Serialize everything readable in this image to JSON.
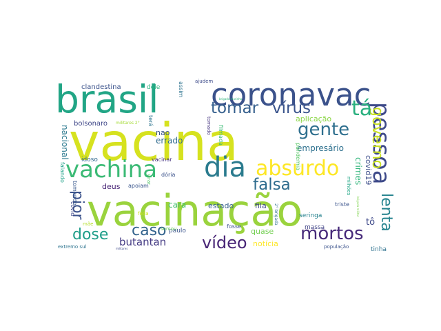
{
  "words": [
    {
      "text": "vacina",
      "color": "#d6e21f"
    },
    {
      "text": "vacinação",
      "color": "#9ad33d"
    },
    {
      "text": "coronavac",
      "color": "#3b528b"
    },
    {
      "text": "brasil",
      "color": "#21a585"
    },
    {
      "text": "vachina",
      "color": "#3bba75"
    },
    {
      "text": "dia",
      "color": "#2a7b8e"
    },
    {
      "text": "absurdo",
      "color": "#fde725"
    },
    {
      "text": "pessoa",
      "color": "#3e4a89"
    },
    {
      "text": "governo",
      "color": "#c8e020"
    },
    {
      "text": "tá",
      "color": "#2ab07f"
    },
    {
      "text": "gente",
      "color": "#2e6f8e"
    },
    {
      "text": "vírus",
      "color": "#3a548c"
    },
    {
      "text": "tomar",
      "color": "#355f8d"
    },
    {
      "text": "falsa",
      "color": "#2f6c8e"
    },
    {
      "text": "mortos",
      "color": "#472a7a"
    },
    {
      "text": "vídeo",
      "color": "#482576"
    },
    {
      "text": "caso",
      "color": "#33638d"
    },
    {
      "text": "dose",
      "color": "#1f9e89"
    },
    {
      "text": "lenta",
      "color": "#25838e"
    },
    {
      "text": "pior",
      "color": "#3b528b"
    },
    {
      "text": "butantan",
      "color": "#443a83"
    },
    {
      "text": "empresário",
      "color": "#2d708e"
    },
    {
      "text": "crimes",
      "color": "#31b57b"
    },
    {
      "text": "covid19",
      "color": "#3d4e8a"
    },
    {
      "text": "nacional",
      "color": "#2a788e"
    },
    {
      "text": "errado",
      "color": "#2f6b8e"
    },
    {
      "text": "nao",
      "color": "#3a538b"
    },
    {
      "text": "cara",
      "color": "#46c06f"
    },
    {
      "text": "estado",
      "color": "#35608d"
    },
    {
      "text": "fila",
      "color": "#3f4889"
    },
    {
      "text": "deus",
      "color": "#482475"
    },
    {
      "text": "apoiam",
      "color": "#39558c"
    },
    {
      "text": "paulo",
      "color": "#3a538b"
    },
    {
      "text": "somou",
      "color": "#65cb5e"
    },
    {
      "text": "fosse",
      "color": "#3c4f8a"
    },
    {
      "text": "quase",
      "color": "#75d054"
    },
    {
      "text": "notícia",
      "color": "#fde725"
    },
    {
      "text": "tô",
      "color": "#3e4989"
    },
    {
      "text": "tinha",
      "color": "#2d718e"
    },
    {
      "text": "massa",
      "color": "#414487"
    },
    {
      "text": "seringa",
      "color": "#26828e"
    },
    {
      "text": "triste",
      "color": "#3a538b"
    },
    {
      "text": "aplicação",
      "color": "#8bd646"
    },
    {
      "text": "dele",
      "color": "#2ab07f"
    },
    {
      "text": "assim",
      "color": "#2c728e"
    },
    {
      "text": "ajudem",
      "color": "#3e4c8a"
    },
    {
      "text": "clandestina",
      "color": "#3b528b"
    },
    {
      "text": "bolsonaro",
      "color": "#3f4788"
    },
    {
      "text": "militares 2°",
      "color": "#a5db36"
    },
    {
      "text": "terá",
      "color": "#2c738e"
    },
    {
      "text": "tomado",
      "color": "#463480"
    },
    {
      "text": "filmada",
      "color": "#3bbb75"
    },
    {
      "text": "pandemia",
      "color": "#58c765"
    },
    {
      "text": "idoso",
      "color": "#31688e"
    },
    {
      "text": "vacinar",
      "color": "#46337f"
    },
    {
      "text": "virar",
      "color": "#54c568"
    },
    {
      "text": "dória",
      "color": "#3b528b"
    },
    {
      "text": "falando",
      "color": "#1fa188"
    },
    {
      "text": "tomando",
      "color": "#38588c"
    },
    {
      "text": "covid",
      "color": "#3e4989"
    },
    {
      "text": "mãe",
      "color": "#b5de2b"
    },
    {
      "text": "foda",
      "color": "#cae11f"
    },
    {
      "text": "extremo sul",
      "color": "#2c738e"
    },
    {
      "text": "população",
      "color": "#3b528b"
    },
    {
      "text": "2° brigada",
      "color": "#2e6e8e"
    },
    {
      "text": "milhões",
      "color": "#21a685"
    },
    {
      "text": "brigada marinha",
      "color": "#30b47c"
    },
    {
      "text": "brigada militar",
      "color": "#7fd34e"
    },
    {
      "text": "militares",
      "color": "#3e4a89"
    }
  ]
}
